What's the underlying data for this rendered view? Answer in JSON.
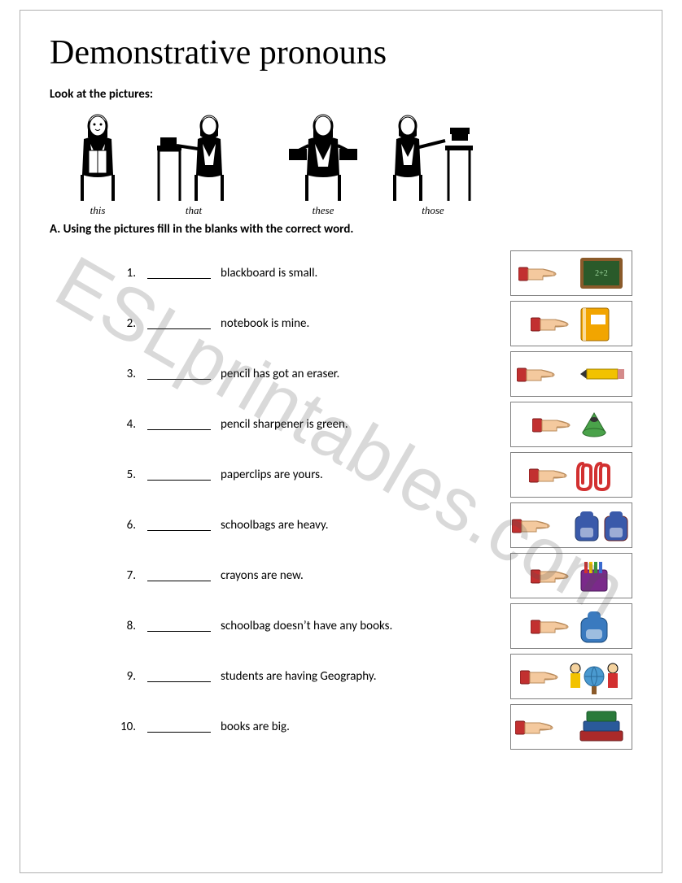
{
  "title": "Demonstrative pronouns",
  "subtitle": "Look at the pictures:",
  "demo_figures": [
    {
      "caption": "this"
    },
    {
      "caption": "that"
    },
    {
      "caption": "these"
    },
    {
      "caption": "those"
    }
  ],
  "section_a": "A. Using the pictures fill in the blanks with the correct word.",
  "exercises": [
    {
      "num": "1.",
      "text": "blackboard is small.",
      "distance": "far",
      "object": "blackboard"
    },
    {
      "num": "2.",
      "text": "notebook is mine.",
      "distance": "near",
      "object": "notebook"
    },
    {
      "num": "3.",
      "text": "pencil has got an eraser.",
      "distance": "far",
      "object": "pencil"
    },
    {
      "num": "4.",
      "text": "pencil sharpener is green.",
      "distance": "near",
      "object": "sharpener"
    },
    {
      "num": "5.",
      "text": "paperclips are yours.",
      "distance": "near",
      "object": "paperclips"
    },
    {
      "num": "6.",
      "text": "schoolbags are heavy.",
      "distance": "far",
      "object": "schoolbags"
    },
    {
      "num": "7.",
      "text": "crayons are new.",
      "distance": "near",
      "object": "crayons"
    },
    {
      "num": "8.",
      "text": "schoolbag doesn’t have any books.",
      "distance": "near",
      "object": "schoolbag"
    },
    {
      "num": "9.",
      "text": "students are having Geography.",
      "distance": "near",
      "object": "students"
    },
    {
      "num": "10.",
      "text": "books are big.",
      "distance": "far",
      "object": "books"
    }
  ],
  "watermark": "ESLprintables.com",
  "colors": {
    "hand_skin": "#f4c99e",
    "hand_cuff": "#c23030",
    "blackboard_frame": "#8a5a2a",
    "blackboard_face": "#2a5a2a",
    "notebook": "#f2a500",
    "pencil_body": "#f2c200",
    "pencil_tip": "#333333",
    "sharpener": "#4aa24a",
    "paperclip": "#d23030",
    "bag1": "#3a5aaa",
    "bag2": "#aa3a3a",
    "crayon_box": "#7a2a8a",
    "schoolbag": "#3a7abf",
    "globe": "#4a9ad0",
    "book1": "#aa2a2a",
    "book2": "#2a5a9a",
    "book3": "#2a7a3a"
  }
}
